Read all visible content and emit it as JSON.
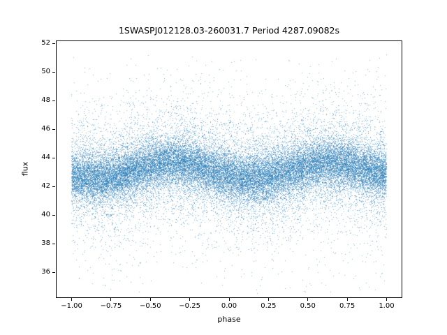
{
  "chart_data": {
    "type": "scatter",
    "title": "1SWASPJ012128.03-260031.7 Period 4287.09082s",
    "xlabel": "phase",
    "ylabel": "flux",
    "xlim": [
      -1.1,
      1.1
    ],
    "ylim": [
      34.2,
      52.2
    ],
    "xtick_values": [
      -1.0,
      -0.75,
      -0.5,
      -0.25,
      0.0,
      0.25,
      0.5,
      0.75,
      1.0
    ],
    "xtick_labels": [
      "−1.00",
      "−0.75",
      "−0.50",
      "−0.25",
      "0.00",
      "0.25",
      "0.50",
      "0.75",
      "1.00"
    ],
    "ytick_values": [
      36,
      38,
      40,
      42,
      44,
      46,
      48,
      50,
      52
    ],
    "ytick_labels": [
      "36",
      "38",
      "40",
      "42",
      "44",
      "46",
      "48",
      "50",
      "52"
    ],
    "marker_color": "#1f77b4",
    "marker_alpha": 0.55,
    "grid": false,
    "legend": "none",
    "model": {
      "description": "phase-folded light curve: dense sinusoidally-modulated scatter band",
      "phase_range": [
        -1.0,
        1.0
      ],
      "base_flux": 43.1,
      "amplitude": 0.55,
      "peak_phase": -0.35,
      "core_fraction": 0.62,
      "core_sigma": 0.8,
      "mid_fraction": 0.28,
      "mid_sigma": 1.7,
      "tail_sigma": 3.4,
      "flux_min_visible": 34.8,
      "flux_max_visible": 51.2,
      "n_points": 36000,
      "seed": 7
    }
  }
}
